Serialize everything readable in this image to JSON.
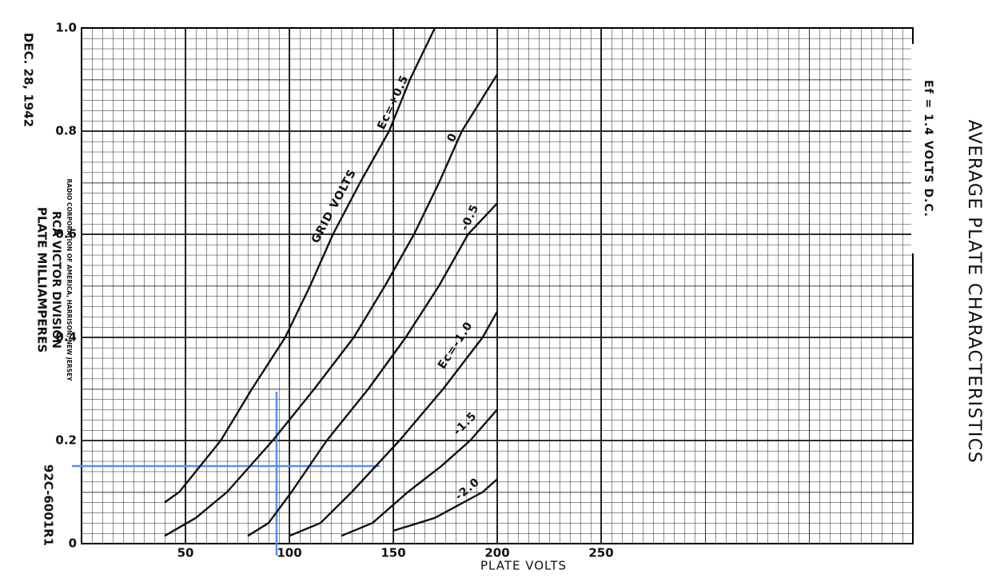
{
  "chart_data": {
    "type": "line",
    "title": "AVERAGE PLATE CHARACTERISTICS",
    "subtitle": "Ef = 1.4 VOLTS D.C.",
    "x_label": "PLATE VOLTS",
    "y_label": "PLATE MILLIAMPERES",
    "annotations": [
      "DEC. 28, 1942",
      "RCA VICTOR DIVISION",
      "RADIO CORPORATION OF AMERICA, HARRISON, NEW JERSEY",
      "92C-6001R1",
      "GRID VOLTS"
    ],
    "xlim": [
      0,
      400
    ],
    "ylim": [
      0,
      1
    ],
    "xticks": [
      50,
      100,
      150,
      200,
      250
    ],
    "yticks": [
      0,
      0.2,
      0.4,
      0.6,
      0.8,
      {
        "value": 1,
        "label": "1.0"
      }
    ],
    "grid": true,
    "series": [
      {
        "name": "Ec=+0.5",
        "color": "#111111",
        "x": [
          40,
          47,
          57,
          67,
          82,
          98,
          110,
          121,
          134,
          148,
          158,
          170
        ],
        "values": [
          0.08,
          0.1,
          0.15,
          0.2,
          0.3,
          0.4,
          0.5,
          0.6,
          0.7,
          0.8,
          0.9,
          1.0
        ]
      },
      {
        "name": "0",
        "color": "#111111",
        "x": [
          40,
          55,
          70,
          92,
          112,
          131,
          146,
          160,
          172,
          183,
          200
        ],
        "values": [
          0.015,
          0.05,
          0.1,
          0.2,
          0.3,
          0.4,
          0.5,
          0.6,
          0.7,
          0.8,
          0.91
        ]
      },
      {
        "name": "-0.5",
        "color": "#111111",
        "x": [
          80,
          90,
          101,
          118,
          138,
          156,
          172,
          186,
          200
        ],
        "values": [
          0.015,
          0.04,
          0.1,
          0.2,
          0.3,
          0.4,
          0.5,
          0.6,
          0.66
        ]
      },
      {
        "name": "Ec=-1.0",
        "color": "#111111",
        "x": [
          100,
          115,
          130,
          153,
          174,
          193,
          200
        ],
        "values": [
          0.015,
          0.04,
          0.1,
          0.2,
          0.3,
          0.4,
          0.45
        ]
      },
      {
        "name": "-1.5",
        "color": "#111111",
        "x": [
          125,
          140,
          157,
          173,
          187,
          200
        ],
        "values": [
          0.015,
          0.04,
          0.1,
          0.15,
          0.2,
          0.26
        ]
      },
      {
        "name": "-2.0",
        "color": "#111111",
        "x": [
          150,
          170,
          193,
          200
        ],
        "values": [
          0.025,
          0.05,
          0.1,
          0.125
        ]
      }
    ]
  }
}
